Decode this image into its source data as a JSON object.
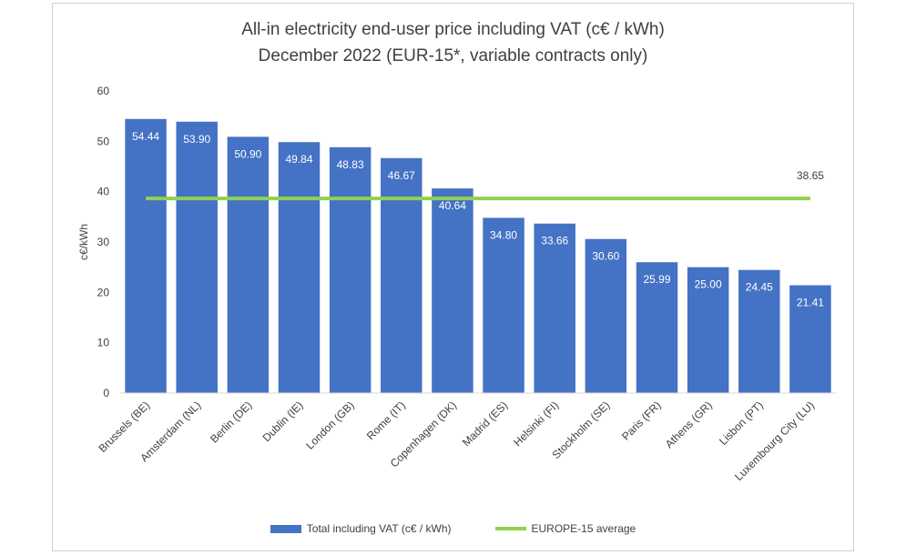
{
  "chart_data": {
    "type": "bar",
    "title": "All-in electricity end-user price including VAT (c€ / kWh)",
    "subtitle": "December 2022 (EUR-15*, variable contracts only)",
    "ylabel": "c€/kWh",
    "xlabel": "",
    "ylim": [
      0,
      60
    ],
    "yticks": [
      0,
      10,
      20,
      30,
      40,
      50,
      60
    ],
    "grid": false,
    "legend_position": "bottom",
    "categories": [
      "Brussels (BE)",
      "Amsterdam (NL)",
      "Berlin (DE)",
      "Dublin (IE)",
      "London (GB)",
      "Rome (IT)",
      "Copenhagen (DK)",
      "Madrid (ES)",
      "Helsinki (FI)",
      "Stockholm (SE)",
      "Paris (FR)",
      "Athens (GR)",
      "Lisbon (PT)",
      "Luxembourg City (LU)"
    ],
    "series": [
      {
        "name": "Total including VAT (c€ / kWh)",
        "type": "bar",
        "color": "#4472c4",
        "values": [
          54.44,
          53.9,
          50.9,
          49.84,
          48.83,
          46.67,
          40.64,
          34.8,
          33.66,
          30.6,
          25.99,
          25.0,
          24.45,
          21.41
        ],
        "labels": [
          "54.44",
          "53.90",
          "50.90",
          "49.84",
          "48.83",
          "46.67",
          "40.64",
          "34.80",
          "33.66",
          "30.60",
          "25.99",
          "25.00",
          "24.45",
          "21.41"
        ]
      },
      {
        "name": "EUROPE-15 average",
        "type": "line",
        "color": "#92d050",
        "value": 38.65,
        "label": "38.65"
      }
    ]
  }
}
